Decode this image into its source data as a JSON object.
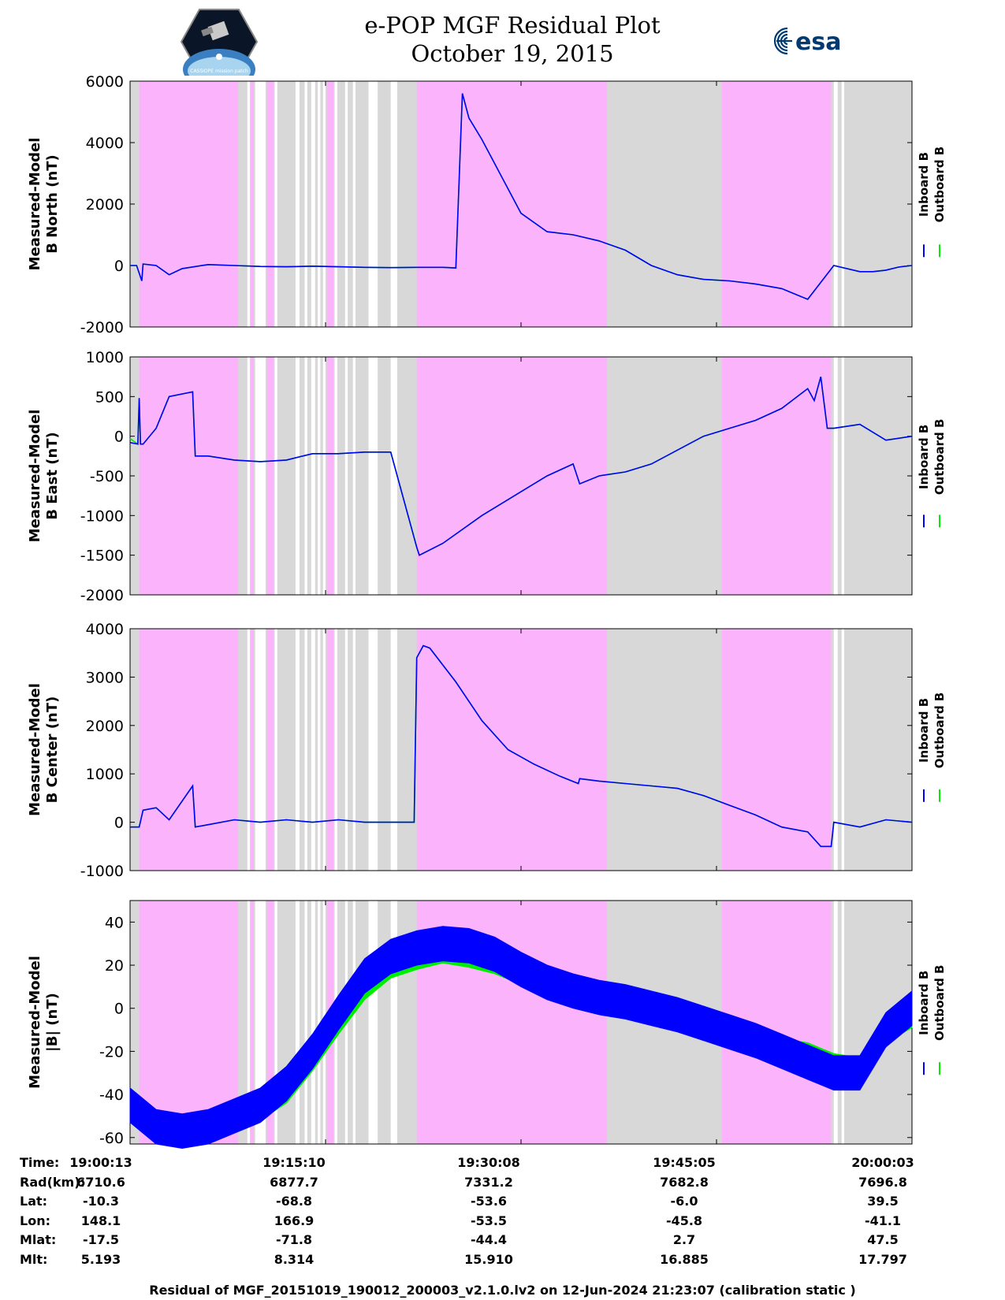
{
  "title": {
    "line1": "e-POP MGF Residual Plot",
    "line2": "October 19, 2015"
  },
  "logos": {
    "left": "CASSIOPE mission patch",
    "right": "esa"
  },
  "colors": {
    "inboard": "#0000ff",
    "outboard": "#00ee00",
    "pink": "#fbb4fb",
    "gray": "#d8d8d8"
  },
  "chart_data": [
    {
      "type": "line",
      "ylabel_line1": "Measured-Model",
      "ylabel_line2": "B North (nT)",
      "ylim": [
        -2000,
        6000
      ],
      "yticks": [
        "6000",
        "4000",
        "2000",
        "0",
        "-2000"
      ],
      "ytick_values": [
        6000,
        4000,
        2000,
        0,
        -2000
      ],
      "legend": [
        "Inboard B",
        "Outboard B"
      ],
      "x_minutes": [
        0,
        0.5,
        0.9,
        1,
        2,
        3,
        4,
        6,
        8,
        10,
        12,
        14,
        16,
        18,
        20,
        22,
        24,
        25,
        25.5,
        26,
        27,
        28,
        30,
        32,
        34,
        36,
        38,
        40,
        42,
        44,
        46,
        48,
        50,
        52,
        54,
        56,
        57,
        58,
        59,
        60
      ],
      "inboard": [
        0,
        0,
        -500,
        50,
        0,
        -300,
        -100,
        30,
        0,
        -30,
        -40,
        -20,
        -40,
        -60,
        -70,
        -60,
        -60,
        -80,
        5600,
        4800,
        4100,
        3300,
        1700,
        1100,
        1000,
        800,
        500,
        0,
        -300,
        -450,
        -500,
        -600,
        -750,
        -1100,
        0,
        -200,
        -200,
        -150,
        -50,
        0
      ],
      "outboard": [
        0,
        0,
        -500,
        50,
        0,
        -300,
        -100,
        30,
        0,
        -30,
        -40,
        -20,
        -40,
        -60,
        -70,
        -60,
        -60,
        -80,
        5600,
        4800,
        4100,
        3300,
        1700,
        1100,
        1000,
        800,
        500,
        0,
        -300,
        -450,
        -500,
        -600,
        -750,
        -1100,
        0,
        -200,
        -200,
        -150,
        -50,
        0
      ]
    },
    {
      "type": "line",
      "ylabel_line1": "Measured-Model",
      "ylabel_line2": "B East (nT)",
      "ylim": [
        -2000,
        1000
      ],
      "yticks": [
        "1000",
        "500",
        "0",
        "-500",
        "-1000",
        "-1500",
        "-2000"
      ],
      "ytick_values": [
        1000,
        500,
        0,
        -500,
        -1000,
        -1500,
        -2000
      ],
      "legend": [
        "Inboard B",
        "Outboard B"
      ],
      "x_minutes": [
        0,
        0.6,
        0.7,
        0.8,
        1,
        2,
        3,
        4.8,
        5,
        6,
        8,
        10,
        12,
        14,
        16,
        18,
        20,
        22,
        22.2,
        24,
        27,
        30,
        32,
        34,
        34.5,
        36,
        38,
        40,
        44,
        46,
        48,
        50,
        52,
        52.5,
        53,
        53.5,
        54,
        56,
        58,
        60
      ],
      "inboard": [
        -80,
        -100,
        480,
        -100,
        -100,
        100,
        500,
        560,
        -250,
        -250,
        -300,
        -320,
        -300,
        -220,
        -220,
        -200,
        -200,
        -1400,
        -1500,
        -1350,
        -1000,
        -700,
        -500,
        -350,
        -600,
        -500,
        -450,
        -350,
        0,
        100,
        200,
        350,
        600,
        450,
        750,
        100,
        100,
        150,
        -50,
        0
      ],
      "outboard": [
        -30,
        -100,
        480,
        -100,
        -100,
        100,
        500,
        560,
        -250,
        -250,
        -300,
        -320,
        -300,
        -220,
        -220,
        -200,
        -200,
        -1400,
        -1500,
        -1350,
        -1000,
        -700,
        -500,
        -350,
        -600,
        -500,
        -450,
        -350,
        0,
        100,
        200,
        350,
        600,
        450,
        750,
        100,
        100,
        150,
        -50,
        0
      ]
    },
    {
      "type": "line",
      "ylabel_line1": "Measured-Model",
      "ylabel_line2": "B Center (nT)",
      "ylim": [
        -1000,
        4000
      ],
      "yticks": [
        "4000",
        "3000",
        "2000",
        "1000",
        "0",
        "-1000"
      ],
      "ytick_values": [
        4000,
        3000,
        2000,
        1000,
        0,
        -1000
      ],
      "legend": [
        "Inboard B",
        "Outboard B"
      ],
      "x_minutes": [
        0,
        0.7,
        1,
        2,
        3,
        4.8,
        5,
        6,
        8,
        10,
        12,
        14,
        16,
        18,
        20,
        21.8,
        22,
        22.5,
        23,
        25,
        27,
        29,
        31,
        33,
        34.4,
        34.5,
        36,
        38,
        40,
        42,
        44,
        46,
        48,
        50,
        52,
        53,
        53.8,
        54,
        56,
        58,
        60
      ],
      "inboard": [
        -100,
        -100,
        250,
        300,
        50,
        750,
        -100,
        -50,
        50,
        0,
        50,
        0,
        50,
        0,
        0,
        0,
        3400,
        3650,
        3600,
        2900,
        2100,
        1500,
        1200,
        950,
        800,
        900,
        850,
        800,
        750,
        700,
        550,
        350,
        150,
        -100,
        -200,
        -500,
        -500,
        0,
        -100,
        50,
        0
      ],
      "outboard": [
        -100,
        -100,
        250,
        300,
        50,
        750,
        -100,
        -50,
        50,
        0,
        50,
        0,
        50,
        0,
        0,
        0,
        3400,
        3650,
        3600,
        2900,
        2100,
        1500,
        1200,
        950,
        800,
        900,
        850,
        800,
        750,
        700,
        550,
        350,
        150,
        -100,
        -200,
        -500,
        -500,
        0,
        -100,
        50,
        0
      ]
    },
    {
      "type": "line",
      "ylabel_line1": "Measured-Model",
      "ylabel_line2": "|B| (nT)",
      "ylim": [
        -63,
        50
      ],
      "yticks": [
        "40",
        "20",
        "0",
        "-20",
        "-40",
        "-60"
      ],
      "ytick_values": [
        40,
        20,
        0,
        -20,
        -40,
        -60
      ],
      "legend": [
        "Inboard B",
        "Outboard B"
      ],
      "x_minutes": [
        0,
        2,
        4,
        6,
        8,
        10,
        12,
        14,
        16,
        18,
        20,
        22,
        24,
        26,
        28,
        30,
        32,
        34,
        36,
        38,
        40,
        42,
        44,
        46,
        48,
        50,
        52,
        54,
        56,
        58,
        60
      ],
      "inboard": [
        -45,
        -55,
        -57,
        -55,
        -50,
        -45,
        -35,
        -20,
        -2,
        15,
        24,
        28,
        30,
        29,
        25,
        18,
        12,
        8,
        5,
        3,
        0,
        -3,
        -7,
        -11,
        -15,
        -20,
        -25,
        -30,
        -30,
        -10,
        0
      ],
      "outboard": [
        -45,
        -58,
        -60,
        -58,
        -53,
        -48,
        -40,
        -25,
        -8,
        8,
        18,
        22,
        25,
        23,
        20,
        15,
        10,
        6,
        3,
        1,
        -2,
        -4,
        -8,
        -11,
        -14,
        -18,
        -20,
        -25,
        -27,
        -12,
        -5
      ],
      "inboard_spread": 8,
      "outboard_spread": 4
    }
  ],
  "info_table": {
    "labels": [
      "Time:",
      "Rad(km):",
      "Lat:",
      "Lon:",
      "Mlat:",
      "Mlt:"
    ],
    "columns": [
      [
        "19:00:13",
        "6710.6",
        "-10.3",
        "148.1",
        "-17.5",
        "5.193"
      ],
      [
        "19:15:10",
        "6877.7",
        "-68.8",
        "166.9",
        "-71.8",
        "8.314"
      ],
      [
        "19:30:08",
        "7331.2",
        "-53.6",
        "-53.5",
        "-44.4",
        "15.910"
      ],
      [
        "19:45:05",
        "7682.8",
        "-6.0",
        "-45.8",
        "2.7",
        "16.885"
      ],
      [
        "20:00:03",
        "7696.8",
        "39.5",
        "-41.1",
        "47.5",
        "17.797"
      ]
    ]
  },
  "footer": "Residual of MGF_20151019_190012_200003_v2.1.0.lv2 on 12-Jun-2024 21:23:07 (calibration static )",
  "background_bands": {
    "pink_minutes": [
      [
        0.7,
        8.3
      ],
      [
        9.2,
        9.5
      ],
      [
        10.5,
        11.0
      ],
      [
        15.1,
        15.6
      ],
      [
        22.0,
        36.6
      ],
      [
        45.4,
        53.8
      ]
    ],
    "white_minutes": [
      [
        9.0,
        9.2
      ],
      [
        9.6,
        10.4
      ],
      [
        11.1,
        11.3
      ],
      [
        12.7,
        13.0
      ],
      [
        13.4,
        13.6
      ],
      [
        13.9,
        14.2
      ],
      [
        14.4,
        14.6
      ],
      [
        14.8,
        15.0
      ],
      [
        15.7,
        15.9
      ],
      [
        16.5,
        16.7
      ],
      [
        17.1,
        17.3
      ],
      [
        18.3,
        19.0
      ],
      [
        20.0,
        20.5
      ],
      [
        54.0,
        54.3
      ],
      [
        54.6,
        54.8
      ]
    ]
  }
}
